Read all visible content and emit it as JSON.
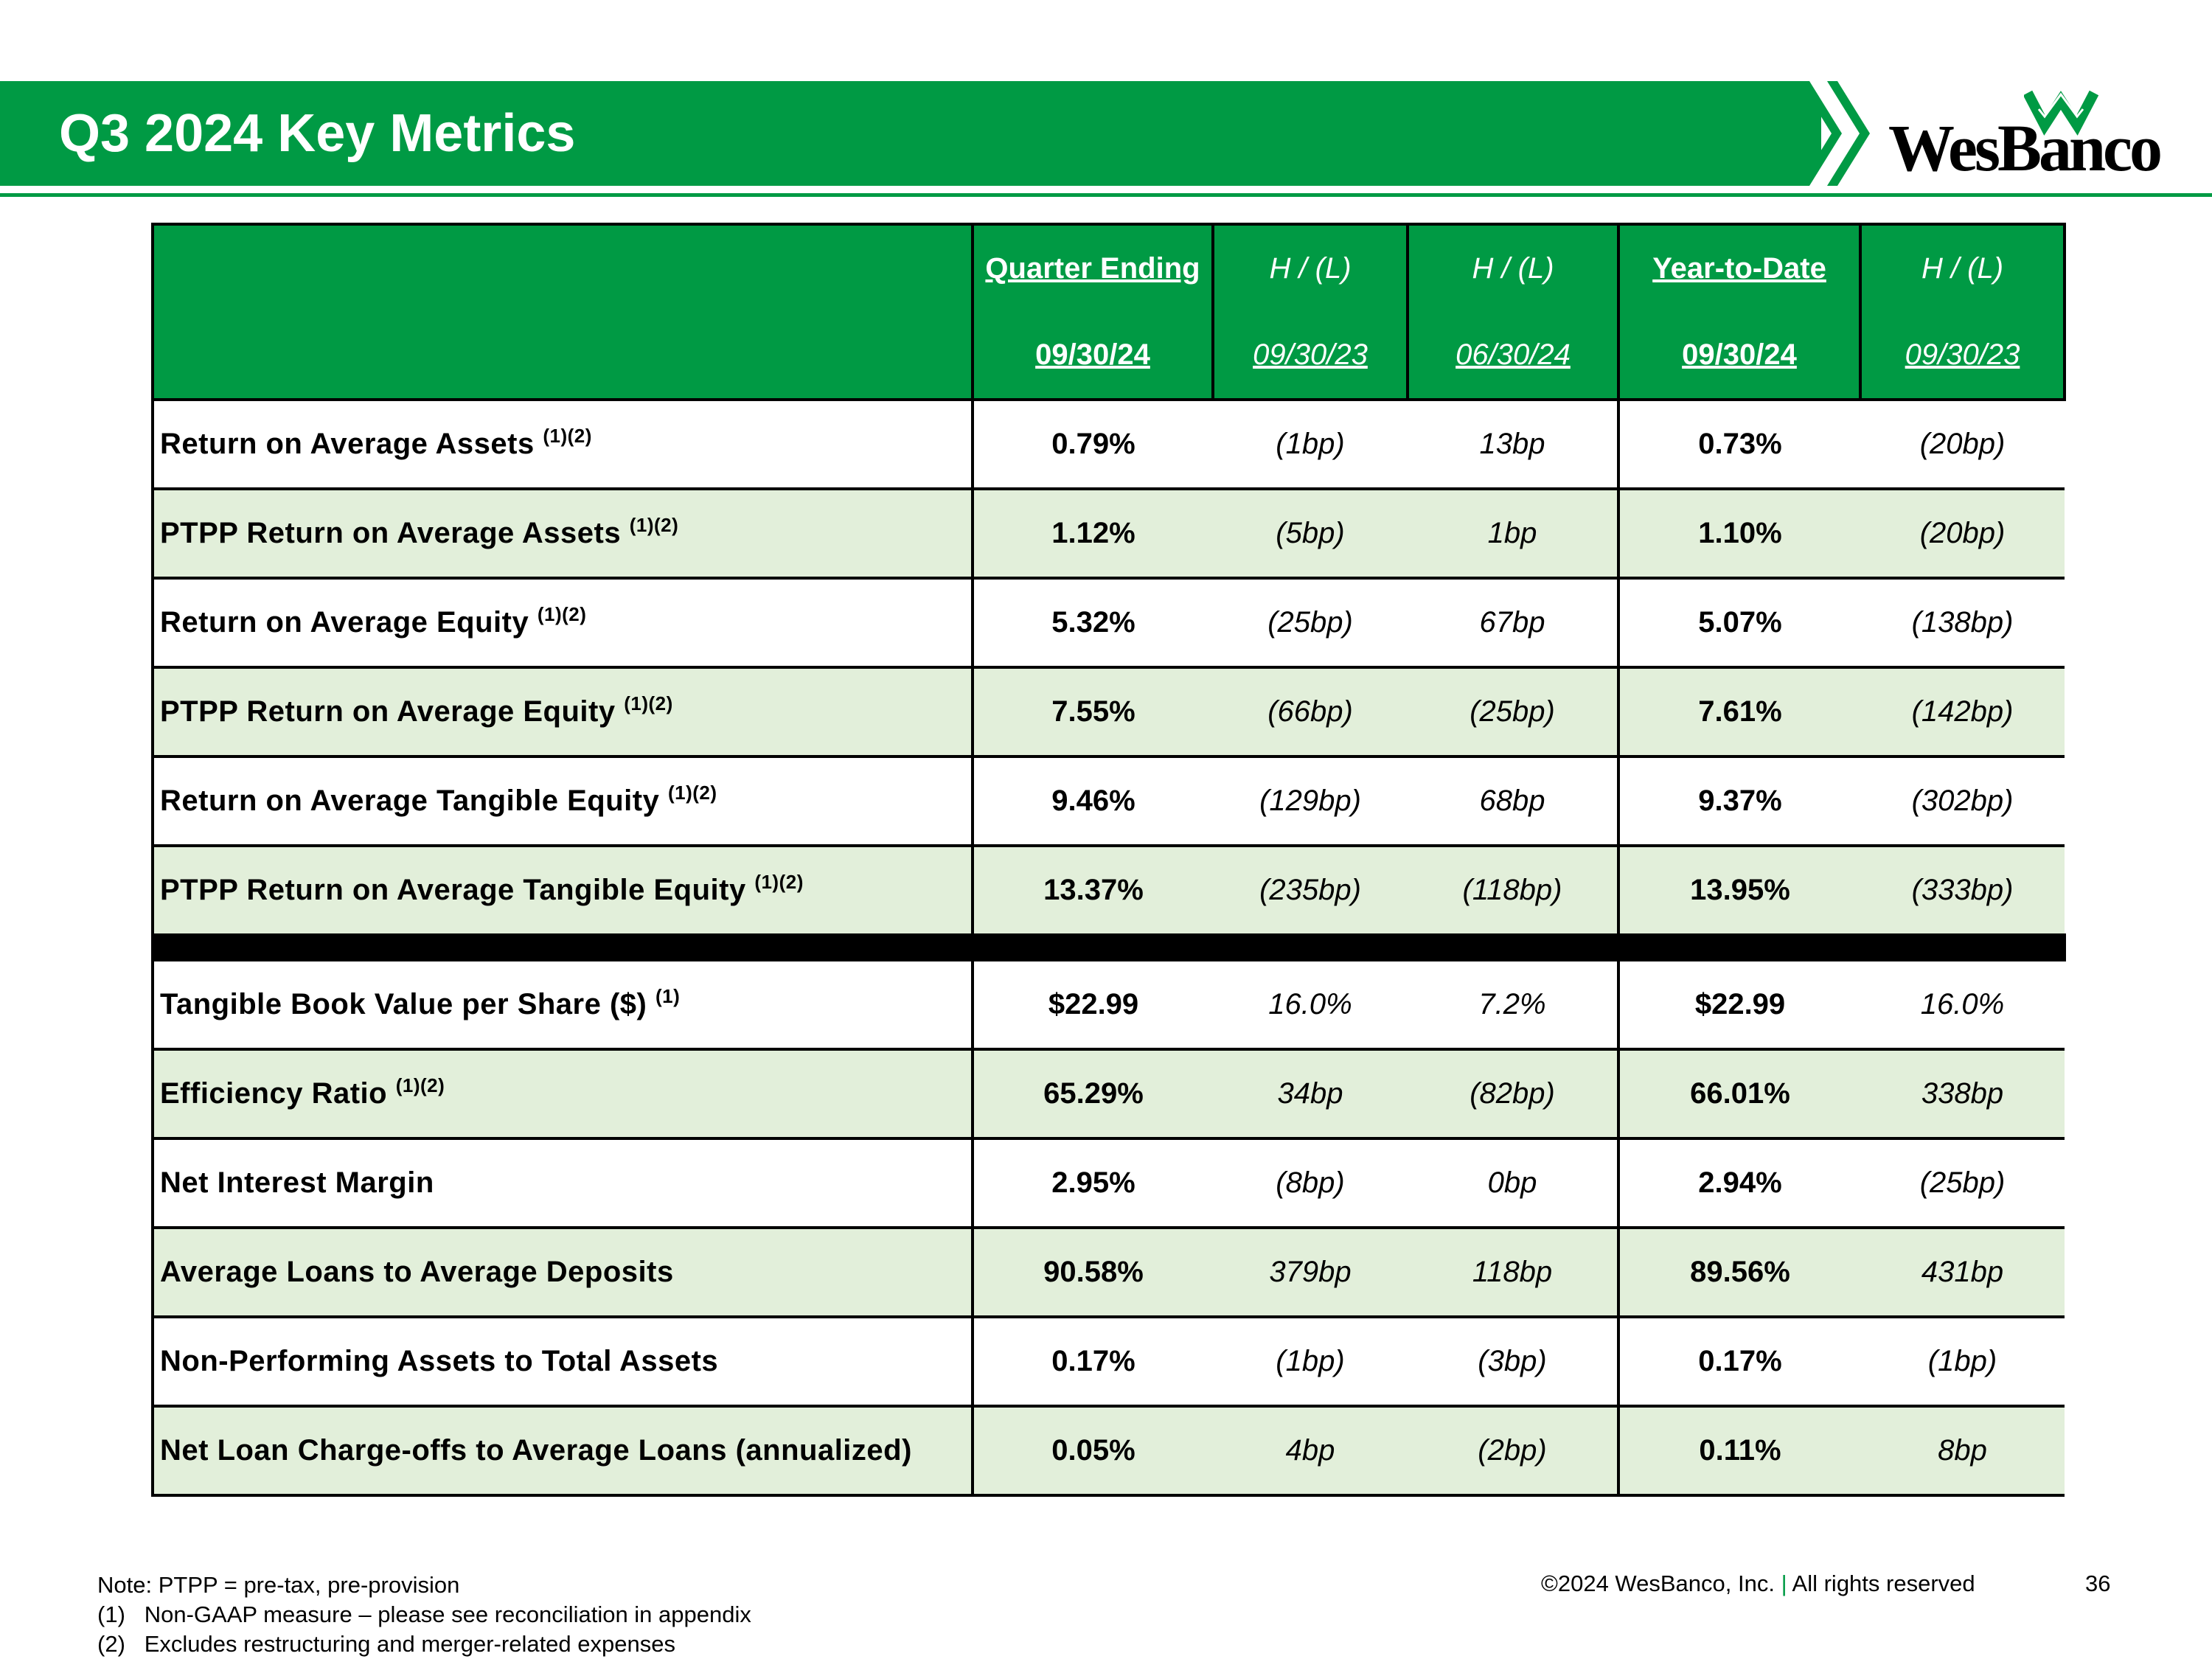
{
  "header": {
    "title": "Q3 2024 Key Metrics",
    "logo_text": "WesBanco",
    "brand_color": "#009a44"
  },
  "table": {
    "columns": [
      {
        "line1": "Quarter Ending",
        "line2": "09/30/24"
      },
      {
        "line1": "H / (L)",
        "line2": "09/30/23"
      },
      {
        "line1": "H / (L)",
        "line2": "06/30/24"
      },
      {
        "line1": "Year-to-Date",
        "line2": "09/30/24"
      },
      {
        "line1": "H / (L)",
        "line2": "09/30/23"
      }
    ],
    "rows": [
      {
        "label": "Return on Average Assets",
        "sup": "(1)(2)",
        "values": [
          "0.79%",
          "(1bp)",
          "13bp",
          "0.73%",
          "(20bp)"
        ]
      },
      {
        "label": "PTPP Return on Average Assets",
        "sup": "(1)(2)",
        "values": [
          "1.12%",
          "(5bp)",
          "1bp",
          "1.10%",
          "(20bp)"
        ]
      },
      {
        "label": "Return on Average Equity",
        "sup": "(1)(2)",
        "values": [
          "5.32%",
          "(25bp)",
          "67bp",
          "5.07%",
          "(138bp)"
        ]
      },
      {
        "label": "PTPP Return on Average Equity",
        "sup": "(1)(2)",
        "values": [
          "7.55%",
          "(66bp)",
          "(25bp)",
          "7.61%",
          "(142bp)"
        ]
      },
      {
        "label": "Return on Average Tangible Equity",
        "sup": "(1)(2)",
        "values": [
          "9.46%",
          "(129bp)",
          "68bp",
          "9.37%",
          "(302bp)"
        ]
      },
      {
        "label": "PTPP Return on Average Tangible Equity",
        "sup": "(1)(2)",
        "values": [
          "13.37%",
          "(235bp)",
          "(118bp)",
          "13.95%",
          "(333bp)"
        ]
      },
      {
        "label": "Tangible Book Value per Share ($)",
        "sup": "(1)",
        "values": [
          "$22.99",
          "16.0%",
          "7.2%",
          "$22.99",
          "16.0%"
        ]
      },
      {
        "label": "Efficiency Ratio",
        "sup": "(1)(2)",
        "values": [
          "65.29%",
          "34bp",
          "(82bp)",
          "66.01%",
          "338bp"
        ]
      },
      {
        "label": "Net Interest Margin",
        "sup": "",
        "values": [
          "2.95%",
          "(8bp)",
          "0bp",
          "2.94%",
          "(25bp)"
        ]
      },
      {
        "label": "Average Loans to Average Deposits",
        "sup": "",
        "values": [
          "90.58%",
          "379bp",
          "118bp",
          "89.56%",
          "431bp"
        ]
      },
      {
        "label": "Non-Performing Assets to Total Assets",
        "sup": "",
        "values": [
          "0.17%",
          "(1bp)",
          "(3bp)",
          "0.17%",
          "(1bp)"
        ]
      },
      {
        "label": "Net Loan Charge-offs to Average Loans (annualized)",
        "sup": "",
        "values": [
          "0.05%",
          "4bp",
          "(2bp)",
          "0.11%",
          "8bp"
        ]
      }
    ]
  },
  "notes": {
    "note": "Note:  PTPP = pre-tax, pre-provision",
    "n1_num": "(1)",
    "n1_text": "Non-GAAP measure – please see reconciliation in appendix",
    "n2_num": "(2)",
    "n2_text": "Excludes restructuring and merger-related expenses"
  },
  "footer": {
    "copyright": "©2024 WesBanco, Inc.",
    "separator": "|",
    "rights": "All rights reserved",
    "page": "36"
  }
}
